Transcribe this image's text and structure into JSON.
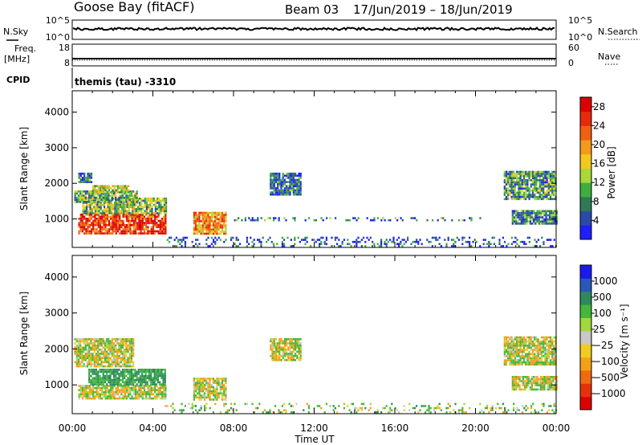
{
  "header": {
    "station": "Goose Bay (fitACF)",
    "beam": "Beam 03",
    "dates": "17/Jun/2019 – 18/Jun/2019"
  },
  "panels": {
    "nsky": {
      "left_label": "N.Sky",
      "top_tick": "10^5",
      "bottom_tick": "10^0",
      "right_top_tick": "10^5",
      "right_bottom_tick": "10^0",
      "right_label": "N.Search"
    },
    "freq": {
      "left_label_1": "Freq.",
      "left_label_2": "[MHz]",
      "top_tick": "18",
      "bottom_tick": "8",
      "right_top_tick": "60",
      "right_bottom_tick": "0",
      "right_label": "Nave"
    },
    "cpid": {
      "left_label": "CPID",
      "text": "themis (tau) -3310"
    }
  },
  "chart_data": [
    {
      "type": "heatmap",
      "name": "power",
      "ylabel": "Slant Range [km]",
      "ylim": [
        200,
        4600
      ],
      "yticks": [
        "1000",
        "2000",
        "3000",
        "4000"
      ],
      "xlim_hours": [
        0,
        24
      ],
      "colorbar": {
        "label": "Power [dB]",
        "tick_labels": [
          "4",
          "8",
          "12",
          "16",
          "20",
          "24",
          "28"
        ],
        "colors": [
          "#1e1eff",
          "#2a4aa8",
          "#2e7a55",
          "#3fae3f",
          "#a8d83a",
          "#f2c81e",
          "#f39a18",
          "#f06010",
          "#e82a0c",
          "#dd0000"
        ]
      },
      "regions": [
        {
          "t0": 0.3,
          "t1": 4.6,
          "r0": 620,
          "r1": 1150,
          "value": 26
        },
        {
          "t0": 0.5,
          "t1": 4.7,
          "r0": 1150,
          "r1": 1600,
          "value": 12
        },
        {
          "t0": 0.1,
          "t1": 3.2,
          "r0": 1500,
          "r1": 1800,
          "value": 10
        },
        {
          "t0": 1.0,
          "t1": 2.8,
          "r0": 1750,
          "r1": 1950,
          "value": 14
        },
        {
          "t0": 0.3,
          "t1": 1.0,
          "r0": 2050,
          "r1": 2300,
          "value": 6
        },
        {
          "t0": 6.0,
          "t1": 7.6,
          "r0": 600,
          "r1": 1200,
          "value": 20
        },
        {
          "t0": 9.8,
          "t1": 11.3,
          "r0": 1700,
          "r1": 2300,
          "value": 6
        },
        {
          "t0": 21.4,
          "t1": 24.0,
          "r0": 1550,
          "r1": 2350,
          "value": 9
        },
        {
          "t0": 21.8,
          "t1": 24.0,
          "r0": 850,
          "r1": 1250,
          "value": 8
        },
        {
          "t0": 4.6,
          "t1": 24.0,
          "r0": 250,
          "r1": 500,
          "value": 5
        },
        {
          "t0": 7.5,
          "t1": 20.5,
          "r0": 950,
          "r1": 1050,
          "value": 6
        }
      ]
    },
    {
      "type": "heatmap",
      "name": "velocity",
      "ylabel": "Slant Range [km]",
      "xlabel": "Time UT",
      "ylim": [
        200,
        4600
      ],
      "yticks": [
        "1000",
        "2000",
        "3000",
        "4000"
      ],
      "xlim_hours": [
        0,
        24
      ],
      "xtick_labels": [
        "00:00",
        "04:00",
        "08:00",
        "12:00",
        "16:00",
        "20:00",
        "00:00"
      ],
      "colorbar": {
        "label": "Velocity [m s⁻¹]",
        "tick_labels": [
          "1000",
          "500",
          "100",
          "25",
          "−25",
          "−100",
          "−500",
          "−1000"
        ],
        "colors": [
          "#1a1aee",
          "#2a58b8",
          "#2e8a5a",
          "#44b83c",
          "#a2d83a",
          "#c8c8c8",
          "#f0cc20",
          "#f3a018",
          "#ef6a10",
          "#e6320c",
          "#dd0000"
        ]
      },
      "regions": [
        {
          "t0": 0.3,
          "t1": 4.6,
          "r0": 600,
          "r1": 1000,
          "value": 0
        },
        {
          "t0": 0.8,
          "t1": 4.6,
          "r0": 1000,
          "r1": 1450,
          "value": 120
        },
        {
          "t0": 0.1,
          "t1": 3.0,
          "r0": 1500,
          "r1": 2300,
          "value": 0
        },
        {
          "t0": 6.0,
          "t1": 7.6,
          "r0": 600,
          "r1": 1200,
          "value": 0
        },
        {
          "t0": 9.8,
          "t1": 11.3,
          "r0": 1700,
          "r1": 2300,
          "value": 0
        },
        {
          "t0": 21.4,
          "t1": 24.0,
          "r0": 1550,
          "r1": 2350,
          "value": 0
        },
        {
          "t0": 21.8,
          "t1": 24.0,
          "r0": 850,
          "r1": 1250,
          "value": 0
        },
        {
          "t0": 4.6,
          "t1": 24.0,
          "r0": 250,
          "r1": 500,
          "value": 40
        }
      ]
    }
  ]
}
